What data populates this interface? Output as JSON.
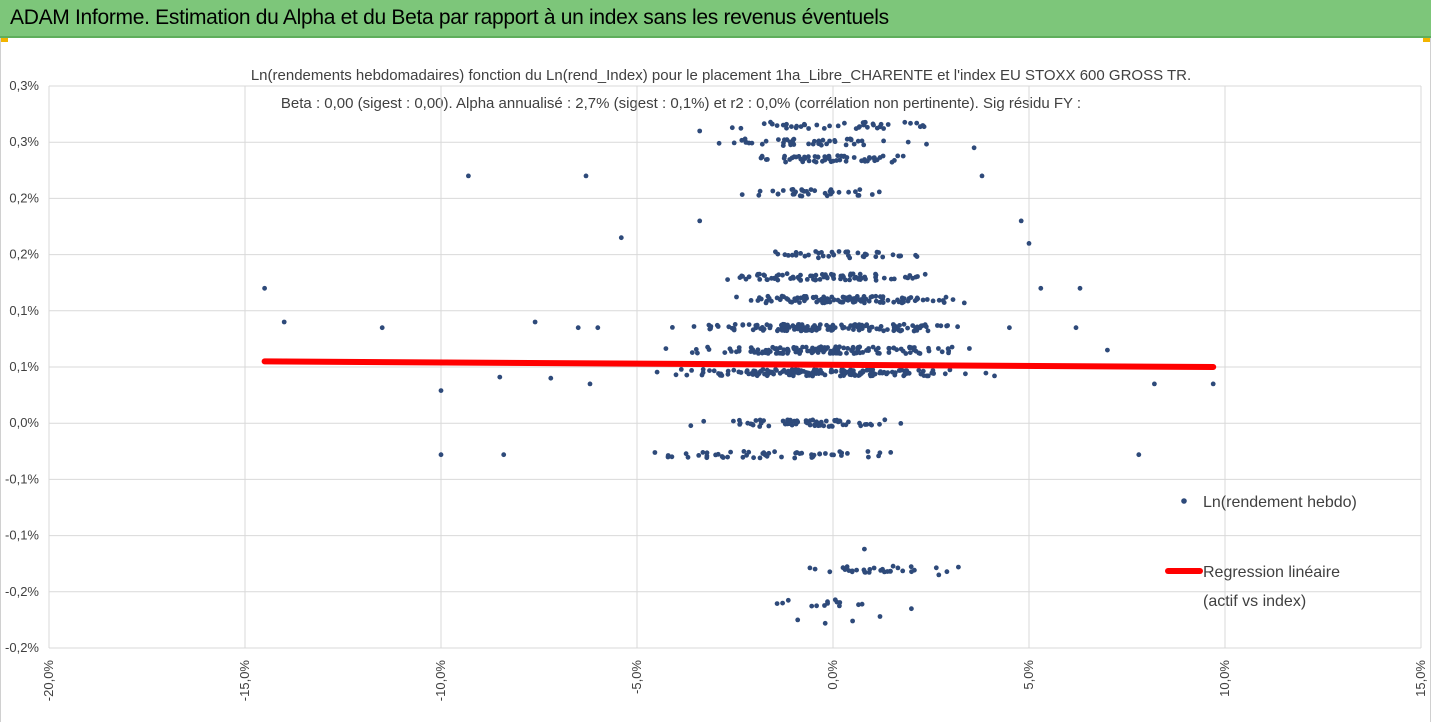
{
  "banner": {
    "title": "ADAM Informe. Estimation du Alpha et du Beta par rapport à un index sans les revenus éventuels"
  },
  "colors": {
    "banner": "#7dc67a",
    "points": "#2e4a7a",
    "regression": "#ff0000",
    "grid": "#d9d9d9",
    "text": "#404040"
  },
  "chart_data": {
    "type": "scatter",
    "title_lines": [
      "Ln(rendements hebdomadaires) fonction du Ln(rend_Index) pour le placement 1ha_Libre_CHARENTE et l'index EU STOXX 600 GROSS TR.",
      "Beta : 0,00 (sigest : 0,00). Alpha annualisé : 2,7% (sigest : 0,1%) et r2 : 0,0% (corrélation non pertinente). Sig résidu FY :"
    ],
    "xlim": [
      -0.2,
      0.15
    ],
    "ylim": [
      -0.002,
      0.003
    ],
    "grid": true,
    "x_ticks": [
      -0.2,
      -0.15,
      -0.1,
      -0.05,
      0.0,
      0.05,
      0.1,
      0.15
    ],
    "x_tick_labels": [
      "-20,0%",
      "-15,0%",
      "-10,0%",
      "-5,0%",
      "0,0%",
      "5,0%",
      "10,0%",
      "15,0%"
    ],
    "y_ticks": [
      0.003,
      0.0025,
      0.002,
      0.0015,
      0.001,
      0.0005,
      0.0,
      -0.0005,
      -0.001,
      -0.0015,
      -0.002
    ],
    "y_tick_labels": [
      "0,3%",
      "0,3%",
      "0,2%",
      "0,2%",
      "0,1%",
      "0,1%",
      "0,0%",
      "-0,1%",
      "-0,1%",
      "-0,2%",
      "-0,2%"
    ],
    "legend_position": "right",
    "series": [
      {
        "name": "Ln(rendement hebdo)",
        "kind": "points",
        "clusters": [
          {
            "y": 0.0,
            "x_from": -0.045,
            "x_to": 0.03,
            "n": 70
          },
          {
            "y": -0.00028,
            "x_from": -0.06,
            "x_to": 0.03,
            "n": 55
          },
          {
            "y": 0.00045,
            "x_from": -0.05,
            "x_to": 0.045,
            "n": 170
          },
          {
            "y": 0.00065,
            "x_from": -0.05,
            "x_to": 0.045,
            "n": 150
          },
          {
            "y": 0.00085,
            "x_from": -0.05,
            "x_to": 0.045,
            "n": 150
          },
          {
            "y": 0.0011,
            "x_from": -0.04,
            "x_to": 0.04,
            "n": 120
          },
          {
            "y": 0.0013,
            "x_from": -0.04,
            "x_to": 0.035,
            "n": 80
          },
          {
            "y": 0.0015,
            "x_from": -0.025,
            "x_to": 0.03,
            "n": 40
          },
          {
            "y": 0.00205,
            "x_from": -0.03,
            "x_to": 0.02,
            "n": 35
          },
          {
            "y": 0.00235,
            "x_from": -0.03,
            "x_to": 0.03,
            "n": 60
          },
          {
            "y": 0.0025,
            "x_from": -0.035,
            "x_to": 0.03,
            "n": 45
          },
          {
            "y": 0.00265,
            "x_from": -0.035,
            "x_to": 0.035,
            "n": 45
          },
          {
            "y": -0.0013,
            "x_from": -0.013,
            "x_to": 0.033,
            "n": 30
          },
          {
            "y": -0.0016,
            "x_from": -0.025,
            "x_to": 0.018,
            "n": 14
          }
        ],
        "extra_points": [
          [
            -0.145,
            0.0012
          ],
          [
            -0.14,
            0.0009
          ],
          [
            -0.115,
            0.00085
          ],
          [
            -0.093,
            0.0022
          ],
          [
            -0.063,
            0.0022
          ],
          [
            -0.054,
            0.00165
          ],
          [
            -0.1,
            0.00029
          ],
          [
            -0.1,
            -0.00028
          ],
          [
            -0.084,
            -0.00028
          ],
          [
            -0.085,
            0.00041
          ],
          [
            -0.076,
            0.0009
          ],
          [
            -0.072,
            0.0004
          ],
          [
            -0.065,
            0.00085
          ],
          [
            -0.06,
            0.00085
          ],
          [
            -0.062,
            0.00035
          ],
          [
            0.05,
            0.0016
          ],
          [
            0.053,
            0.0012
          ],
          [
            0.062,
            0.00085
          ],
          [
            0.063,
            0.0012
          ],
          [
            0.07,
            0.00065
          ],
          [
            0.078,
            -0.00028
          ],
          [
            0.082,
            0.00035
          ],
          [
            0.097,
            0.00035
          ],
          [
            0.048,
            0.0018
          ],
          [
            0.038,
            0.0022
          ],
          [
            0.036,
            0.00245
          ],
          [
            0.045,
            0.00085
          ],
          [
            -0.034,
            0.0018
          ],
          [
            -0.034,
            0.0026
          ],
          [
            0.008,
            -0.00112
          ],
          [
            -0.009,
            -0.00175
          ],
          [
            -0.002,
            -0.00178
          ],
          [
            0.005,
            -0.00176
          ],
          [
            0.012,
            -0.00172
          ],
          [
            0.02,
            -0.00165
          ],
          [
            0.027,
            -0.00135
          ],
          [
            0.032,
            -0.00128
          ]
        ]
      },
      {
        "name": "Regression linéaire (actif vs index)",
        "kind": "line",
        "x": [
          -0.145,
          0.097
        ],
        "y": [
          0.00055,
          0.0005
        ]
      }
    ]
  },
  "legend": {
    "points_label": "Ln(rendement hebdo)",
    "line_label_1": "Regression linéaire",
    "line_label_2": "(actif vs index)"
  }
}
